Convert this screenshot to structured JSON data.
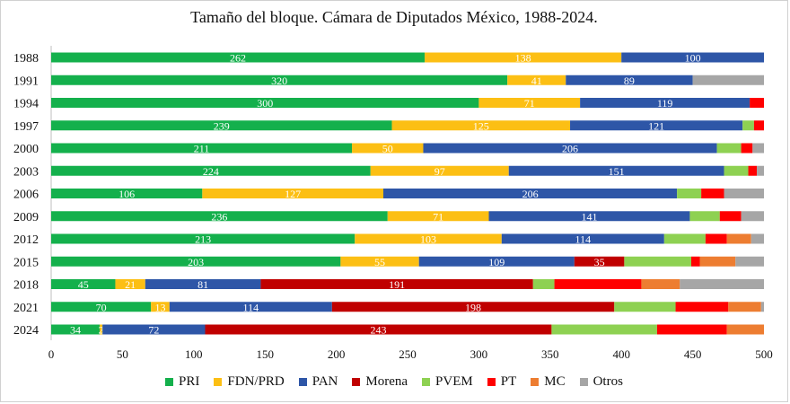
{
  "chart_data": {
    "type": "bar",
    "orientation": "horizontal",
    "stacked": true,
    "title": "Tamaño del bloque. Cámara de Diputados México, 1988-2024.",
    "xlabel": "",
    "ylabel": "",
    "xlim": [
      0,
      500
    ],
    "x_ticks": [
      0,
      50,
      100,
      150,
      200,
      250,
      300,
      350,
      400,
      450,
      500
    ],
    "categories": [
      "1988",
      "1991",
      "1994",
      "1997",
      "2000",
      "2003",
      "2006",
      "2009",
      "2012",
      "2015",
      "2018",
      "2021",
      "2024"
    ],
    "legend_position": "bottom",
    "grid": false,
    "series": [
      {
        "name": "PRI",
        "color": "#14b04c",
        "values": [
          262,
          320,
          300,
          239,
          211,
          224,
          106,
          236,
          213,
          203,
          45,
          70,
          34
        ]
      },
      {
        "name": "FDN/PRD",
        "color": "#fcbf14",
        "values": [
          138,
          41,
          71,
          125,
          50,
          97,
          127,
          71,
          103,
          55,
          21,
          13,
          2
        ]
      },
      {
        "name": "PAN",
        "color": "#2e56a7",
        "values": [
          100,
          89,
          119,
          121,
          206,
          151,
          206,
          141,
          114,
          109,
          81,
          114,
          72
        ]
      },
      {
        "name": "Morena",
        "color": "#c00000",
        "values": [
          0,
          0,
          0,
          0,
          0,
          0,
          0,
          0,
          0,
          35,
          191,
          198,
          243
        ]
      },
      {
        "name": "PVEM",
        "color": "#8ed152",
        "values": [
          0,
          0,
          0,
          8,
          17,
          17,
          17,
          21,
          29,
          47,
          15,
          43,
          74
        ]
      },
      {
        "name": "PT",
        "color": "#ff0000",
        "values": [
          0,
          0,
          10,
          7,
          8,
          6,
          16,
          15,
          15,
          6,
          61,
          37,
          49
        ]
      },
      {
        "name": "MC",
        "color": "#ed7d31",
        "values": [
          0,
          0,
          0,
          0,
          0,
          0,
          0,
          0,
          17,
          25,
          27,
          23,
          26
        ]
      },
      {
        "name": "Otros",
        "color": "#a6a6a6",
        "values": [
          0,
          50,
          0,
          0,
          8,
          5,
          28,
          16,
          9,
          20,
          59,
          2,
          0
        ]
      }
    ],
    "labeled_series": [
      "PRI",
      "FDN/PRD",
      "PAN",
      "Morena"
    ]
  }
}
